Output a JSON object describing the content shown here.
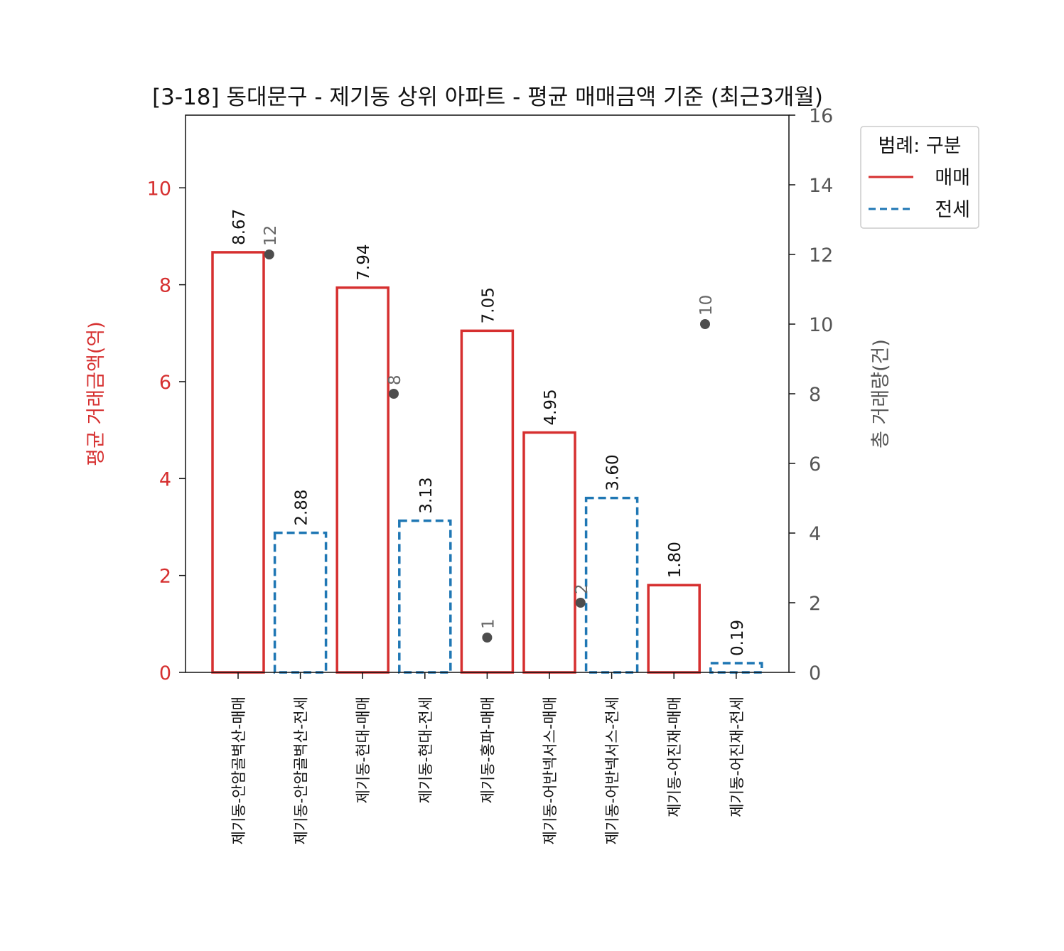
{
  "chart_data": {
    "type": "bar",
    "title": "[3-18] 동대문구 - 제기동 상위 아파트 - 평균 매매금액 기준 (최근3개월)",
    "ylabel": "평균 거래금액(억)",
    "y2label": "총 거래량(건)",
    "ylim": [
      0,
      11.5
    ],
    "y2lim": [
      0,
      16
    ],
    "yticks": [
      0,
      2,
      4,
      6,
      8,
      10
    ],
    "y2ticks": [
      0,
      2,
      4,
      6,
      8,
      10,
      12,
      14,
      16
    ],
    "categories": [
      "제기동-안암골벽산-매매",
      "제기동-안암골벽산-전세",
      "제기동-현대-매매",
      "제기동-현대-전세",
      "제기동-홍파-매매",
      "제기동-어반넥서스-매매",
      "제기동-어반넥서스-전세",
      "제기동-어진재-매매",
      "제기동-어진재-전세"
    ],
    "series": [
      {
        "name": "평균 거래금액(억)",
        "kind": "bar",
        "values": [
          8.67,
          2.88,
          7.94,
          3.13,
          7.05,
          4.95,
          3.6,
          1.8,
          0.19
        ],
        "labels": [
          "8.67",
          "2.88",
          "7.94",
          "3.13",
          "7.05",
          "4.95",
          "3.60",
          "1.80",
          "0.19"
        ],
        "group": [
          "매매",
          "전세",
          "매매",
          "전세",
          "매매",
          "매매",
          "전세",
          "매매",
          "전세"
        ]
      },
      {
        "name": "총 거래량(건)",
        "kind": "scatter",
        "axis": "right",
        "x_index": [
          0.5,
          2.5,
          4.0,
          5.5,
          7.5
        ],
        "values": [
          12,
          8,
          1,
          2,
          10
        ],
        "labels": [
          "12",
          "8",
          "1",
          "2",
          "10"
        ]
      }
    ],
    "legend": {
      "title": "범례: 구분",
      "placement": "top-right outside",
      "items": [
        {
          "label": "매매",
          "color": "#d62f2f",
          "style": "solid"
        },
        {
          "label": "전세",
          "color": "#1f77b4",
          "style": "dashed"
        }
      ]
    },
    "colors": {
      "buy": "#d62f2f",
      "rent": "#1f77b4",
      "left_axis": "#d62f2f",
      "right_axis": "#555555",
      "dots": "#4d4d4d"
    },
    "grid": false
  }
}
